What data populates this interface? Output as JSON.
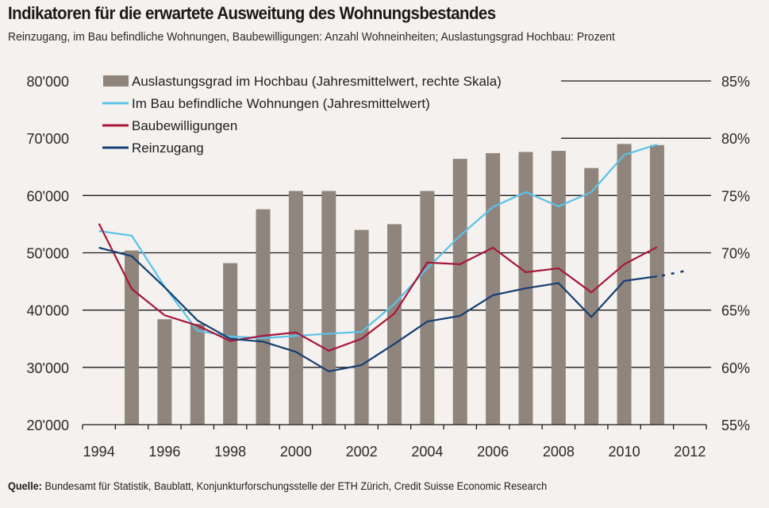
{
  "header": {
    "title": "Indikatoren für die erwartete Ausweitung des Wohnungsbestandes",
    "subtitle": "Reinzugang, im Bau befindliche Wohnungen, Baubewilligungen: Anzahl Wohneinheiten; Auslastungsgrad Hochbau: Prozent"
  },
  "footer": {
    "source_label": "Quelle:",
    "source_text": " Bundesamt für Statistik, Baublatt, Konjunkturforschungsstelle der ETH Zürich, Credit Suisse Economic Research"
  },
  "colors": {
    "background": "#f4f1ee",
    "bars": "#8f857c",
    "im_bau": "#5bc2ea",
    "baubewilligungen": "#a8173a",
    "reinzugang": "#163f73",
    "grid": "#1a1a1a"
  },
  "chart_data": {
    "type": "bar+line",
    "title": "Indikatoren für die erwartete Ausweitung des Wohnungsbestandes",
    "subtitle": "Reinzugang, im Bau befindliche Wohnungen, Baubewilligungen: Anzahl Wohneinheiten; Auslastungsgrad Hochbau: Prozent",
    "x": [
      1994,
      1995,
      1996,
      1997,
      1998,
      1999,
      2000,
      2001,
      2002,
      2003,
      2004,
      2005,
      2006,
      2007,
      2008,
      2009,
      2010,
      2011,
      2012
    ],
    "x_tick_labels": [
      "1994",
      "1996",
      "1998",
      "2000",
      "2002",
      "2004",
      "2006",
      "2008",
      "2010",
      "2012"
    ],
    "y_left": {
      "range": [
        20000,
        80000
      ],
      "ticks": [
        20000,
        30000,
        40000,
        50000,
        60000,
        70000,
        80000
      ],
      "tick_labels": [
        "20'000",
        "30'000",
        "40'000",
        "50'000",
        "60'000",
        "70'000",
        "80'000"
      ]
    },
    "y_right": {
      "range": [
        55,
        85
      ],
      "ticks": [
        55,
        60,
        65,
        70,
        75,
        80,
        85
      ],
      "tick_labels": [
        "55%",
        "60%",
        "65%",
        "70%",
        "75%",
        "80%",
        "85%"
      ]
    },
    "grid": true,
    "legend_position": "top-left",
    "series": [
      {
        "name": "Auslastungsgrad im Hochbau (Jahresmittelwert, rechte Skala)",
        "type": "bar",
        "axis": "right",
        "color_key": "bars",
        "values": [
          null,
          70.2,
          64.2,
          63.8,
          69.1,
          73.8,
          75.4,
          75.4,
          72.0,
          72.5,
          75.4,
          78.2,
          78.7,
          78.8,
          78.9,
          77.4,
          79.5,
          79.4,
          null
        ]
      },
      {
        "name": "Im Bau befindliche Wohnungen (Jahresmittelwert)",
        "type": "line",
        "axis": "left",
        "color_key": "im_bau",
        "values": [
          53800,
          53000,
          44100,
          36400,
          35400,
          35100,
          35500,
          35900,
          36200,
          41100,
          47300,
          53000,
          58000,
          60600,
          58100,
          60600,
          67100,
          68900,
          null
        ]
      },
      {
        "name": "Baubewilligungen",
        "type": "line",
        "axis": "left",
        "color_key": "baubewilligungen",
        "values": [
          55100,
          43700,
          39100,
          37300,
          34600,
          35500,
          36100,
          32900,
          35000,
          39400,
          48300,
          48000,
          50900,
          46600,
          47300,
          43100,
          48000,
          51000,
          null
        ]
      },
      {
        "name": "Reinzugang",
        "type": "line",
        "axis": "left",
        "color_key": "reinzugang",
        "values": [
          50900,
          49400,
          44000,
          38200,
          35000,
          34500,
          32700,
          29300,
          30400,
          34100,
          38000,
          39000,
          42600,
          43800,
          44700,
          38800,
          45100,
          45900,
          null
        ],
        "forecast": {
          "from": 2011,
          "to": 2012,
          "values": [
            45900,
            47000
          ],
          "style": "dotted"
        }
      }
    ]
  }
}
